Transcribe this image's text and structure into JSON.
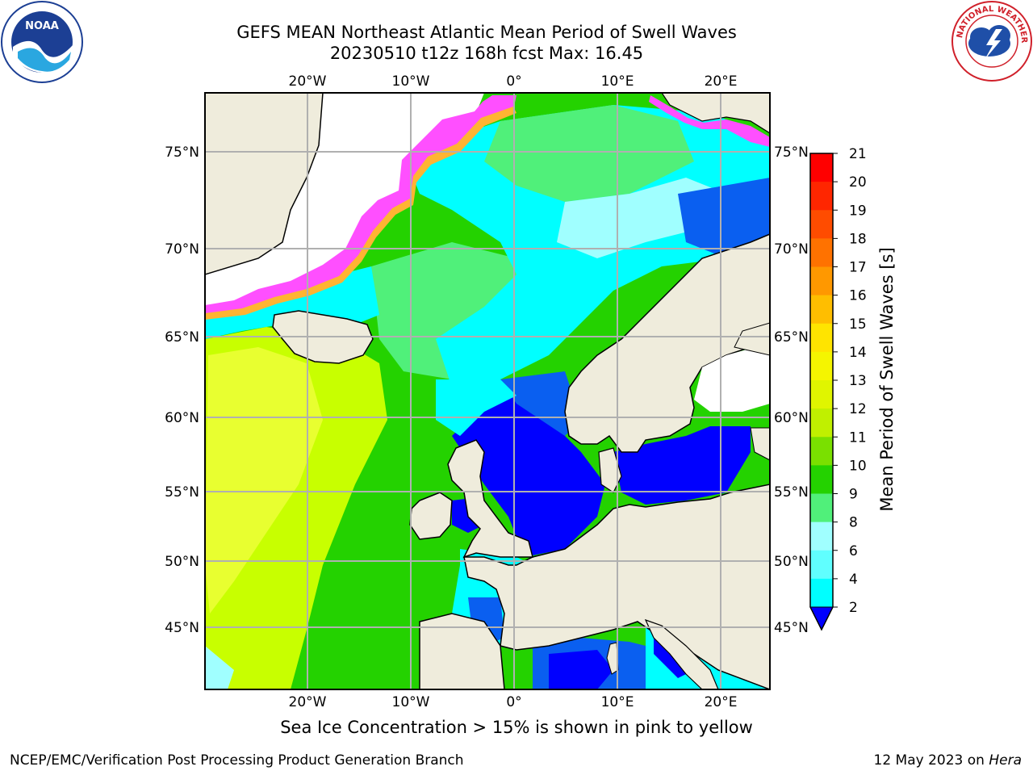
{
  "title": {
    "line1": "GEFS MEAN Northeast Atlantic Mean Period of Swell Waves",
    "line2": "20230510 t12z 168h fcst   Max: 16.45"
  },
  "map": {
    "lon_labels": [
      "20°W",
      "10°W",
      "0°",
      "10°E",
      "20°E"
    ],
    "lat_labels": [
      "75°N",
      "70°N",
      "65°N",
      "60°N",
      "55°N",
      "50°N",
      "45°N"
    ],
    "land_color": "#efecdc",
    "ocean_colors": {
      "short": "#0000ff",
      "blue": "#0a5ff0",
      "cyan": "#00ffff",
      "light_cyan": "#a0ffff",
      "mint": "#50f07a",
      "green": "#24d200",
      "lime": "#c8ff00",
      "yellow": "#ffff00"
    },
    "ice_colors": [
      "#ff4fff",
      "#ffb432",
      "#ffe600"
    ]
  },
  "colorbar": {
    "label": "Mean Period of Swell Waves [s]",
    "ticks": [
      "21",
      "20",
      "19",
      "18",
      "17",
      "16",
      "15",
      "14",
      "13",
      "12",
      "11",
      "10",
      "9",
      "8",
      "6",
      "4",
      "2"
    ],
    "colors": [
      "#ff0000",
      "#ff2600",
      "#ff4c00",
      "#ff7200",
      "#ff9800",
      "#ffbe00",
      "#ffe400",
      "#f5f500",
      "#e0f500",
      "#c0f000",
      "#7ae000",
      "#24d200",
      "#50f07a",
      "#a0ffff",
      "#60ffff",
      "#00ffff",
      "#00e0ff",
      "#0a5ff0"
    ],
    "extend_color": "#0000ff"
  },
  "caption": "Sea Ice Concentration > 15% is shown in pink to yellow",
  "footer": {
    "left": "NCEP/EMC/Verification Post Processing Product Generation Branch",
    "right_prefix": "12 May 2023 on ",
    "right_host": "Hera"
  },
  "logos": {
    "noaa": "NOAA",
    "nws": "NATIONAL WEATHER SERVICE"
  }
}
